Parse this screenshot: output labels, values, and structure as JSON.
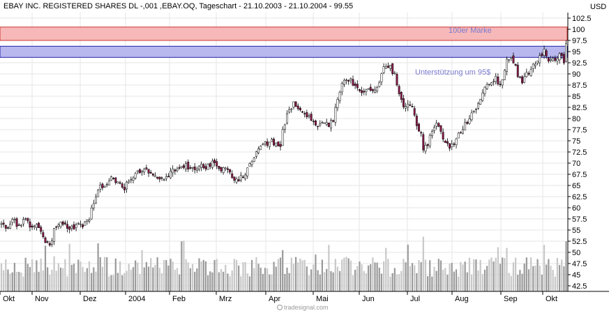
{
  "chart_data": {
    "type": "candlestick",
    "title": "EBAY INC. REGISTERED SHARES DL -,001 ,EBAY.OQ, Tageschart - 21.10.2003 - 21.10.2004 - 99.55",
    "unit": "USD",
    "ylim": [
      41.25,
      103.75
    ],
    "y_ticks": [
      "102.5",
      "100",
      "97.5",
      "95",
      "92.5",
      "90",
      "87.5",
      "85",
      "82.5",
      "80",
      "77.5",
      "75",
      "72.5",
      "70",
      "67.5",
      "65",
      "62.5",
      "60",
      "57.5",
      "55",
      "52.5",
      "50",
      "47.5",
      "45",
      "42.5"
    ],
    "x_ticks": [
      "Okt",
      "Nov",
      "Dez",
      "2004",
      "Feb",
      "Mrz",
      "Apr",
      "Mai",
      "Jun",
      "Jul",
      "Aug",
      "Sep",
      "Okt"
    ],
    "grid": true,
    "bands": [
      {
        "name": "100er Marke",
        "from": 97.5,
        "to": 100.5,
        "color": "#f6b8b8",
        "border": "#cc3333"
      },
      {
        "name": "Unterstützung um 95$",
        "from": 93.7,
        "to": 96.2,
        "color": "#b8b8ee",
        "border": "#2222aa"
      }
    ],
    "annotations": [
      "100er Marke",
      "Unterstützung um 95$"
    ],
    "close_path": [
      [
        0,
        56.5
      ],
      [
        10,
        55
      ],
      [
        18,
        57.5
      ],
      [
        26,
        56
      ],
      [
        36,
        57.8
      ],
      [
        44,
        55
      ],
      [
        52,
        56.5
      ],
      [
        60,
        54
      ],
      [
        66,
        52
      ],
      [
        72,
        51.8
      ],
      [
        78,
        55
      ],
      [
        86,
        56.5
      ],
      [
        96,
        55.5
      ],
      [
        108,
        55.8
      ],
      [
        118,
        56.2
      ],
      [
        128,
        57.5
      ],
      [
        136,
        62
      ],
      [
        144,
        64.5
      ],
      [
        152,
        65.8
      ],
      [
        160,
        66.5
      ],
      [
        170,
        65.5
      ],
      [
        178,
        64.5
      ],
      [
        186,
        66
      ],
      [
        194,
        67
      ],
      [
        204,
        69
      ],
      [
        214,
        68
      ],
      [
        224,
        67
      ],
      [
        234,
        66
      ],
      [
        244,
        68
      ],
      [
        254,
        69
      ],
      [
        264,
        69.5
      ],
      [
        274,
        68.5
      ],
      [
        284,
        69.5
      ],
      [
        296,
        69
      ],
      [
        306,
        70
      ],
      [
        316,
        68.5
      ],
      [
        326,
        69
      ],
      [
        336,
        66
      ],
      [
        344,
        66.8
      ],
      [
        352,
        68
      ],
      [
        360,
        70
      ],
      [
        368,
        72.5
      ],
      [
        378,
        74
      ],
      [
        386,
        75
      ],
      [
        394,
        74.5
      ],
      [
        402,
        74
      ],
      [
        406,
        78
      ],
      [
        412,
        81
      ],
      [
        420,
        83.5
      ],
      [
        428,
        82
      ],
      [
        436,
        81
      ],
      [
        446,
        80
      ],
      [
        454,
        78
      ],
      [
        462,
        79
      ],
      [
        470,
        78.5
      ],
      [
        478,
        80
      ],
      [
        484,
        84
      ],
      [
        490,
        88.5
      ],
      [
        498,
        89
      ],
      [
        506,
        88
      ],
      [
        514,
        87
      ],
      [
        522,
        86
      ],
      [
        530,
        87
      ],
      [
        540,
        86
      ],
      [
        546,
        89
      ],
      [
        550,
        91
      ],
      [
        554,
        92.5
      ],
      [
        560,
        91.5
      ],
      [
        568,
        89
      ],
      [
        574,
        84
      ],
      [
        580,
        83
      ],
      [
        586,
        83.5
      ],
      [
        592,
        82.5
      ],
      [
        598,
        78
      ],
      [
        604,
        76
      ],
      [
        608,
        72.5
      ],
      [
        614,
        75
      ],
      [
        620,
        77
      ],
      [
        626,
        78.5
      ],
      [
        632,
        77
      ],
      [
        638,
        75
      ],
      [
        644,
        73.5
      ],
      [
        650,
        74
      ],
      [
        656,
        76
      ],
      [
        662,
        77.5
      ],
      [
        668,
        79
      ],
      [
        674,
        80.5
      ],
      [
        680,
        82
      ],
      [
        686,
        84
      ],
      [
        692,
        86
      ],
      [
        698,
        87
      ],
      [
        704,
        88.5
      ],
      [
        710,
        89
      ],
      [
        716,
        87.5
      ],
      [
        722,
        90
      ],
      [
        726,
        93
      ],
      [
        732,
        93.5
      ],
      [
        738,
        92
      ],
      [
        744,
        89
      ],
      [
        750,
        88.5
      ],
      [
        756,
        90
      ],
      [
        762,
        91.5
      ],
      [
        768,
        92.5
      ],
      [
        774,
        94
      ],
      [
        780,
        95.5
      ],
      [
        786,
        93
      ],
      [
        792,
        94
      ],
      [
        798,
        93.5
      ],
      [
        804,
        94.5
      ],
      [
        808,
        92
      ],
      [
        811,
        95
      ],
      [
        813,
        99.5
      ]
    ],
    "volume_max": 52,
    "volume_base": 41.25
  }
}
